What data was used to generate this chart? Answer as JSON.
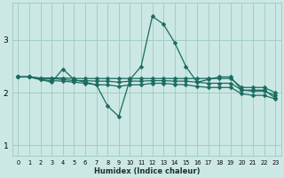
{
  "xlabel": "Humidex (Indice chaleur)",
  "ylabel": "",
  "bg_color": "#cce8e4",
  "grid_color": "#9dc8c2",
  "line_color": "#1a6b60",
  "xlim": [
    -0.5,
    23.5
  ],
  "ylim": [
    0.8,
    3.7
  ],
  "yticks": [
    1,
    2,
    3
  ],
  "xticks": [
    0,
    1,
    2,
    3,
    4,
    5,
    6,
    7,
    8,
    9,
    10,
    11,
    12,
    13,
    14,
    15,
    16,
    17,
    18,
    19,
    20,
    21,
    22,
    23
  ],
  "series": [
    {
      "x": [
        0,
        1,
        2,
        3,
        4,
        5,
        6,
        7,
        8,
        9,
        10,
        11,
        12,
        13,
        14,
        15,
        16,
        17,
        18,
        19,
        20,
        21,
        22,
        23
      ],
      "y": [
        2.3,
        2.3,
        2.25,
        2.2,
        2.45,
        2.25,
        2.2,
        2.15,
        1.75,
        1.55,
        2.25,
        2.5,
        3.45,
        3.3,
        2.95,
        2.5,
        2.2,
        2.25,
        2.3,
        2.3,
        2.05,
        2.05,
        2.05,
        1.9
      ]
    },
    {
      "x": [
        0,
        1,
        2,
        3,
        4,
        5,
        6,
        7,
        8,
        9,
        10,
        11,
        12,
        13,
        14,
        15,
        16,
        17,
        18,
        19,
        20,
        21,
        22,
        23
      ],
      "y": [
        2.3,
        2.3,
        2.28,
        2.28,
        2.28,
        2.27,
        2.27,
        2.27,
        2.27,
        2.27,
        2.27,
        2.27,
        2.27,
        2.27,
        2.27,
        2.27,
        2.27,
        2.27,
        2.27,
        2.27,
        2.1,
        2.1,
        2.1,
        2.0
      ]
    },
    {
      "x": [
        0,
        1,
        2,
        3,
        4,
        5,
        6,
        7,
        8,
        9,
        10,
        11,
        12,
        13,
        14,
        15,
        16,
        17,
        18,
        19,
        20,
        21,
        22,
        23
      ],
      "y": [
        2.3,
        2.3,
        2.27,
        2.27,
        2.25,
        2.23,
        2.23,
        2.22,
        2.22,
        2.2,
        2.22,
        2.22,
        2.23,
        2.23,
        2.22,
        2.22,
        2.2,
        2.18,
        2.18,
        2.18,
        2.05,
        2.03,
        2.03,
        1.95
      ]
    },
    {
      "x": [
        0,
        1,
        2,
        3,
        4,
        5,
        6,
        7,
        8,
        9,
        10,
        11,
        12,
        13,
        14,
        15,
        16,
        17,
        18,
        19,
        20,
        21,
        22,
        23
      ],
      "y": [
        2.3,
        2.3,
        2.25,
        2.23,
        2.22,
        2.2,
        2.18,
        2.15,
        2.15,
        2.12,
        2.15,
        2.15,
        2.18,
        2.18,
        2.16,
        2.15,
        2.12,
        2.1,
        2.1,
        2.1,
        1.98,
        1.95,
        1.95,
        1.88
      ]
    }
  ],
  "marker": "D",
  "markersize": 2.5,
  "linewidth": 0.9,
  "xlabel_fontsize": 6.0,
  "xlabel_fontweight": "bold",
  "xlabel_color": "#1a3030",
  "xtick_fontsize": 4.8,
  "ytick_fontsize": 6.5
}
